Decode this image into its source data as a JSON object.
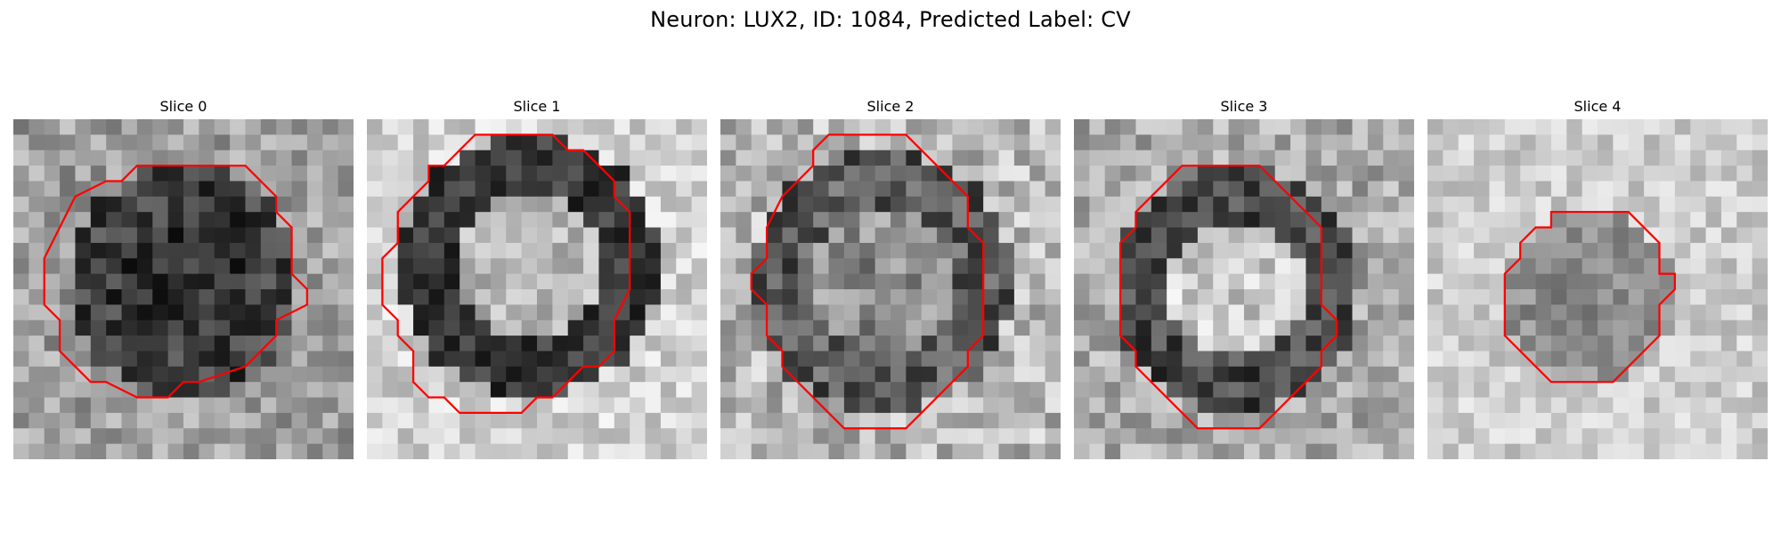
{
  "figure": {
    "title": "Neuron: LUX2, ID: 1084, Predicted Label: CV",
    "contour_color": "#ff0000",
    "colormap": "gray"
  },
  "panels": [
    {
      "title": "Slice 0",
      "image_desc_icon": "grayscale-microscopy-patch",
      "contour": [
        [
          10,
          3
        ],
        [
          15,
          3
        ],
        [
          17,
          5
        ],
        [
          17,
          6
        ],
        [
          18,
          7
        ],
        [
          18,
          10
        ],
        [
          19,
          11
        ],
        [
          19,
          12
        ],
        [
          17,
          13
        ],
        [
          17,
          14
        ],
        [
          15,
          16
        ],
        [
          12,
          17
        ],
        [
          11,
          17
        ],
        [
          10,
          18
        ],
        [
          8,
          18
        ],
        [
          6,
          17
        ],
        [
          5,
          17
        ],
        [
          4,
          16
        ],
        [
          3,
          15
        ],
        [
          3,
          13
        ],
        [
          2,
          12
        ],
        [
          2,
          9
        ],
        [
          3,
          7
        ],
        [
          4,
          5
        ],
        [
          6,
          4
        ],
        [
          7,
          4
        ],
        [
          8,
          3
        ]
      ]
    },
    {
      "title": "Slice 1",
      "image_desc_icon": "grayscale-microscopy-patch",
      "contour": [
        [
          7,
          1
        ],
        [
          12,
          1
        ],
        [
          13,
          2
        ],
        [
          14,
          2
        ],
        [
          15,
          3
        ],
        [
          16,
          4
        ],
        [
          16,
          5
        ],
        [
          17,
          6
        ],
        [
          17,
          11
        ],
        [
          16,
          13
        ],
        [
          16,
          15
        ],
        [
          15,
          16
        ],
        [
          14,
          16
        ],
        [
          12,
          18
        ],
        [
          11,
          18
        ],
        [
          10,
          19
        ],
        [
          6,
          19
        ],
        [
          5,
          18
        ],
        [
          4,
          18
        ],
        [
          3,
          17
        ],
        [
          3,
          15
        ],
        [
          2,
          14
        ],
        [
          2,
          13
        ],
        [
          1,
          12
        ],
        [
          1,
          9
        ],
        [
          2,
          8
        ],
        [
          2,
          6
        ],
        [
          3,
          5
        ],
        [
          4,
          4
        ],
        [
          4,
          3
        ],
        [
          5,
          3
        ],
        [
          6,
          2
        ]
      ]
    },
    {
      "title": "Slice 2",
      "image_desc_icon": "grayscale-microscopy-patch",
      "contour": [
        [
          7,
          1
        ],
        [
          12,
          1
        ],
        [
          13,
          2
        ],
        [
          14,
          3
        ],
        [
          15,
          4
        ],
        [
          16,
          5
        ],
        [
          16,
          7
        ],
        [
          17,
          8
        ],
        [
          17,
          14
        ],
        [
          16,
          15
        ],
        [
          16,
          16
        ],
        [
          15,
          17
        ],
        [
          14,
          18
        ],
        [
          13,
          19
        ],
        [
          12,
          20
        ],
        [
          9,
          20
        ],
        [
          8,
          20
        ],
        [
          7,
          19
        ],
        [
          6,
          18
        ],
        [
          5,
          17
        ],
        [
          4,
          16
        ],
        [
          4,
          15
        ],
        [
          3,
          14
        ],
        [
          3,
          12
        ],
        [
          2,
          11
        ],
        [
          2,
          10
        ],
        [
          3,
          9
        ],
        [
          3,
          7
        ],
        [
          4,
          5
        ],
        [
          5,
          4
        ],
        [
          6,
          3
        ],
        [
          6,
          2
        ]
      ]
    },
    {
      "title": "Slice 3",
      "image_desc_icon": "grayscale-microscopy-patch",
      "contour": [
        [
          8,
          3
        ],
        [
          12,
          3
        ],
        [
          13,
          4
        ],
        [
          14,
          5
        ],
        [
          15,
          6
        ],
        [
          16,
          7
        ],
        [
          16,
          8
        ],
        [
          16,
          10
        ],
        [
          16,
          11
        ],
        [
          16,
          12
        ],
        [
          17,
          13
        ],
        [
          17,
          14
        ],
        [
          16,
          15
        ],
        [
          16,
          16
        ],
        [
          15,
          17
        ],
        [
          14,
          18
        ],
        [
          13,
          19
        ],
        [
          12,
          20
        ],
        [
          8,
          20
        ],
        [
          7,
          19
        ],
        [
          6,
          18
        ],
        [
          5,
          17
        ],
        [
          4,
          16
        ],
        [
          4,
          15
        ],
        [
          3,
          14
        ],
        [
          3,
          13
        ],
        [
          3,
          8
        ],
        [
          4,
          7
        ],
        [
          4,
          6
        ],
        [
          5,
          5
        ],
        [
          6,
          4
        ],
        [
          7,
          3
        ]
      ]
    },
    {
      "title": "Slice 4",
      "image_desc_icon": "grayscale-microscopy-patch",
      "contour": [
        [
          8,
          6
        ],
        [
          13,
          6
        ],
        [
          14,
          7
        ],
        [
          15,
          8
        ],
        [
          15,
          10
        ],
        [
          16,
          10
        ],
        [
          16,
          11
        ],
        [
          15,
          12
        ],
        [
          15,
          14
        ],
        [
          14,
          15
        ],
        [
          13,
          16
        ],
        [
          12,
          17
        ],
        [
          10,
          17
        ],
        [
          8,
          17
        ],
        [
          7,
          16
        ],
        [
          6,
          15
        ],
        [
          5,
          14
        ],
        [
          5,
          12
        ],
        [
          5,
          10
        ],
        [
          6,
          9
        ],
        [
          6,
          8
        ],
        [
          7,
          7
        ],
        [
          8,
          7
        ]
      ]
    }
  ]
}
